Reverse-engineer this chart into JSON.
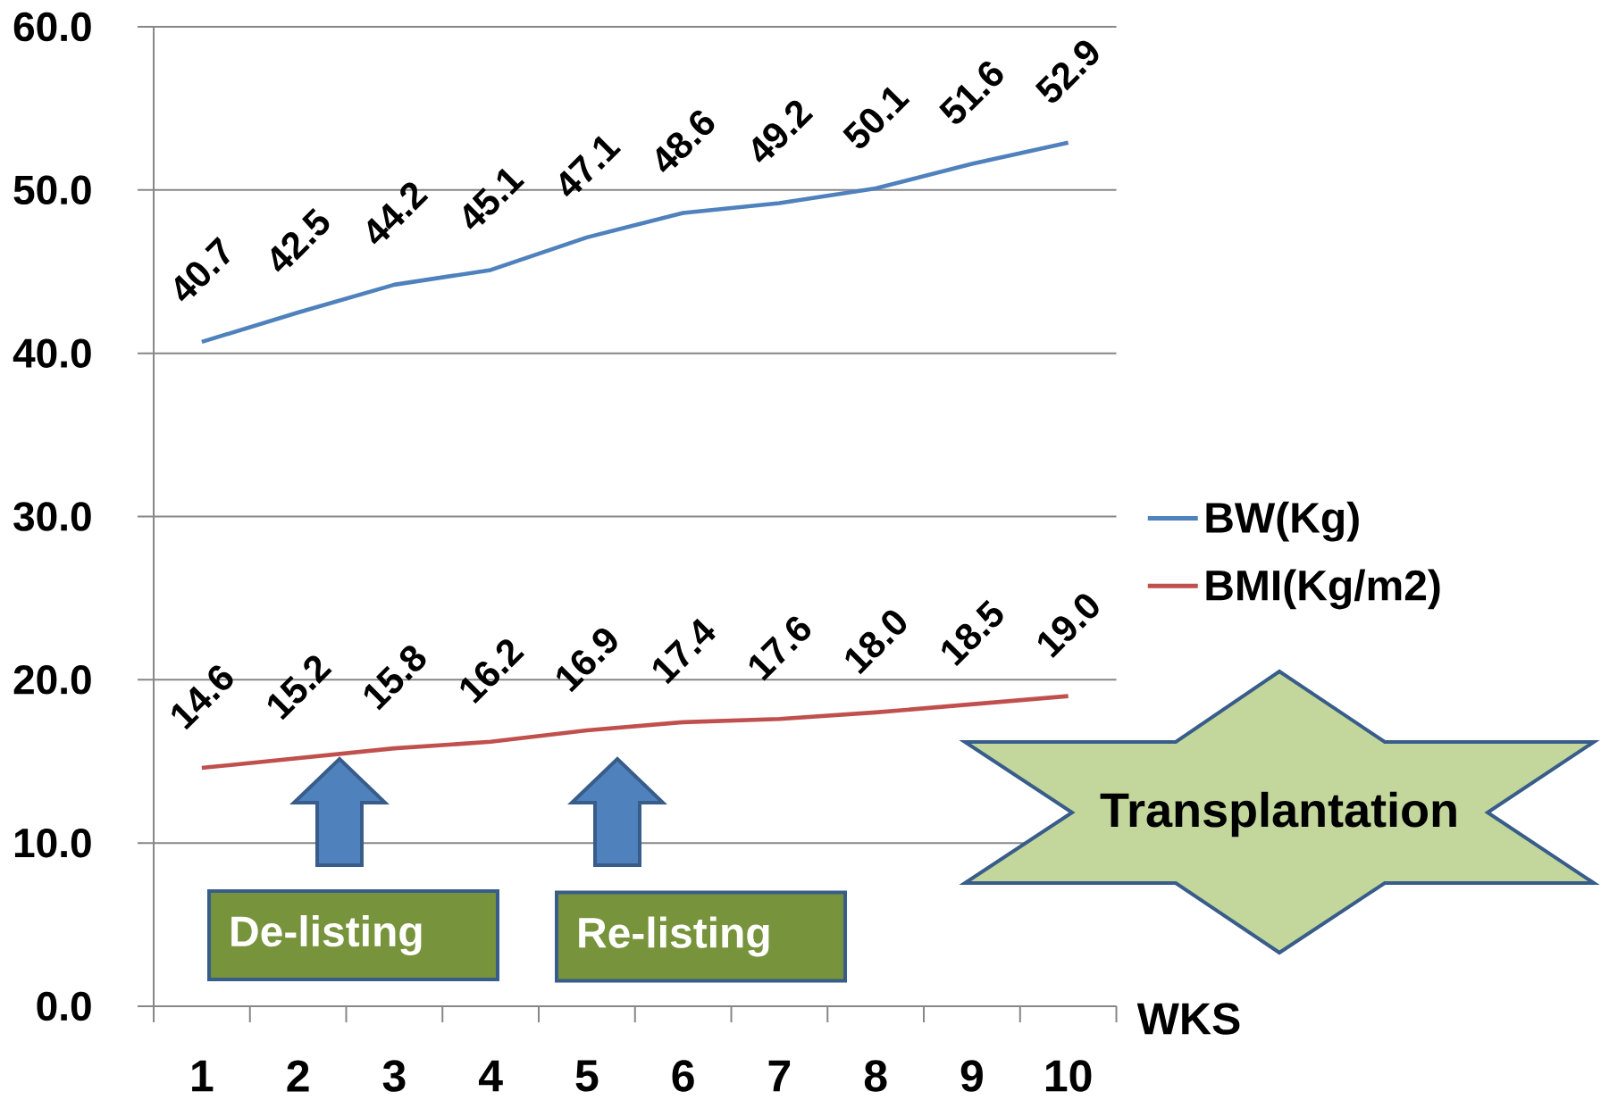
{
  "chart_data": {
    "type": "line",
    "xlabel": "WKS",
    "categories": [
      "1",
      "2",
      "3",
      "4",
      "5",
      "6",
      "7",
      "8",
      "9",
      "10"
    ],
    "series": [
      {
        "name": "BW(Kg)",
        "color": "#4f81bd",
        "values": [
          40.7,
          42.5,
          44.2,
          45.1,
          47.1,
          48.6,
          49.2,
          50.1,
          51.6,
          52.9
        ],
        "value_labels": [
          "40.7",
          "42.5",
          "44.2",
          "45.1",
          "47.1",
          "48.6",
          "49.2",
          "50.1",
          "51.6",
          "52.9"
        ]
      },
      {
        "name": "BMI(Kg/m2)",
        "color": "#c0504d",
        "values": [
          14.6,
          15.2,
          15.8,
          16.2,
          16.9,
          17.4,
          17.6,
          18.0,
          18.5,
          19.0
        ],
        "value_labels": [
          "14.6",
          "15.2",
          "15.8",
          "16.2",
          "16.9",
          "17.4",
          "17.6",
          "18.0",
          "18.5",
          "19.0"
        ]
      }
    ],
    "ylim": [
      0,
      60
    ],
    "yticks": [
      {
        "value": 0,
        "label": "0.0"
      },
      {
        "value": 10,
        "label": "10.0"
      },
      {
        "value": 20,
        "label": "20.0"
      },
      {
        "value": 30,
        "label": "30.0"
      },
      {
        "value": 40,
        "label": "40.0"
      },
      {
        "value": 50,
        "label": "50.0"
      },
      {
        "value": 60,
        "label": "60.0"
      }
    ],
    "grid": "y",
    "legend": "right",
    "marker": "none",
    "line_style": "solid",
    "annotations": [
      "De-listing",
      "Re-listing",
      "Transplantation"
    ]
  }
}
